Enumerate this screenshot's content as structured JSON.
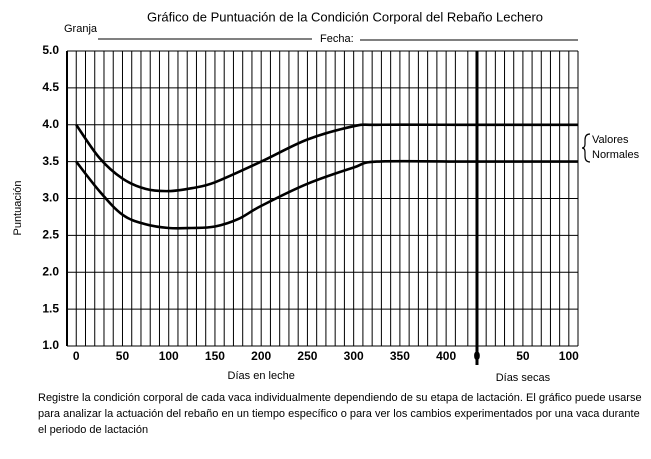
{
  "chart_data": {
    "type": "line",
    "title": "Gráfico de Puntuación de la Condición Corporal del Rebaño Lechero",
    "header_fields": [
      "Granja",
      "Fecha:"
    ],
    "y_label": "Puntuación",
    "ylim": [
      1,
      5
    ],
    "yticks": [
      {
        "value": 1,
        "label": "1.0"
      },
      1.5,
      {
        "value": 2,
        "label": "2.0"
      },
      2.5,
      {
        "value": 3,
        "label": "3.0"
      },
      3.5,
      {
        "value": 4,
        "label": "4.0"
      },
      4.5,
      {
        "value": 5,
        "label": "5.0"
      }
    ],
    "grid": true,
    "x_segments": [
      {
        "label": "Días en leche",
        "xlim": [
          -10,
          415
        ],
        "xticks": [
          0,
          50,
          100,
          150,
          200,
          250,
          300,
          350,
          400
        ],
        "minor_step": 10
      },
      {
        "label": "Días secas",
        "xlim": [
          -18.5,
          110
        ],
        "xticks": [
          0,
          50,
          100
        ],
        "minor_step": 10
      }
    ],
    "series": [
      {
        "color": "#000000",
        "x": [
          0,
          25,
          50,
          75,
          100,
          125,
          150,
          200,
          250,
          300,
          325,
          415
        ],
        "values": [
          4.0,
          3.55,
          3.27,
          3.13,
          3.1,
          3.14,
          3.22,
          3.5,
          3.8,
          3.98,
          4.0,
          4.0
        ],
        "dry_x": [
          -18.5,
          110
        ],
        "dry_values": [
          4.0,
          4.0
        ]
      },
      {
        "color": "#000000",
        "x": [
          0,
          25,
          50,
          75,
          100,
          125,
          150,
          175,
          200,
          250,
          300,
          325,
          415
        ],
        "values": [
          3.5,
          3.1,
          2.78,
          2.65,
          2.6,
          2.6,
          2.62,
          2.72,
          2.9,
          3.2,
          3.42,
          3.5,
          3.5
        ],
        "dry_x": [
          -18.5,
          110
        ],
        "dry_values": [
          3.5,
          3.5
        ]
      }
    ],
    "annotation": [
      "Valores",
      "Normales"
    ],
    "footer": [
      "Registre la condición corporal de cada vaca individualmente dependiendo de su etapa de lactación. El gráfico puede usarse",
      "para analizar la actuación del rebaño en un tiempo específico o para ver los cambios experimentados por una vaca durante",
      "el periodo de lactación"
    ]
  }
}
